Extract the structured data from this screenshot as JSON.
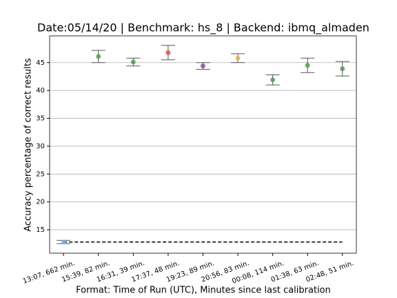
{
  "chart_data": {
    "type": "scatter",
    "title": "Date:05/14/20 | Benchmark: hs_8 | Backend: ibmq_almaden",
    "x_label": "Format: Time of Run (UTC), Minutes since last calibration",
    "y_label": "Accuracy percentage of correct results",
    "categories": [
      "13:07, 662 min.",
      "15:39, 82 min.",
      "16:31, 39 min.",
      "17:37, 48 min.",
      "19:23, 89 min.",
      "20:56, 83 min.",
      "00:08, 114 min.",
      "01:38, 63 min.",
      "02:48, 51 min."
    ],
    "values": [
      12.8,
      46.1,
      45.1,
      46.8,
      44.4,
      45.8,
      41.9,
      44.5,
      43.9
    ],
    "errors": [
      0.3,
      1.1,
      0.7,
      1.3,
      0.6,
      0.8,
      0.9,
      1.3,
      1.3
    ],
    "colors": [
      "#7fb2e5",
      "#4a9a4a",
      "#4a9a4a",
      "#d94a4a",
      "#8a4a9a",
      "#e5b04a",
      "#4a9a4a",
      "#4a9a4a",
      "#5a8a5a"
    ],
    "error_color": "#555555",
    "reference_line": 12.8,
    "ylim": [
      10.8,
      49.8
    ],
    "yticks": [
      15,
      20,
      25,
      30,
      35,
      40,
      45
    ],
    "grid": true
  }
}
